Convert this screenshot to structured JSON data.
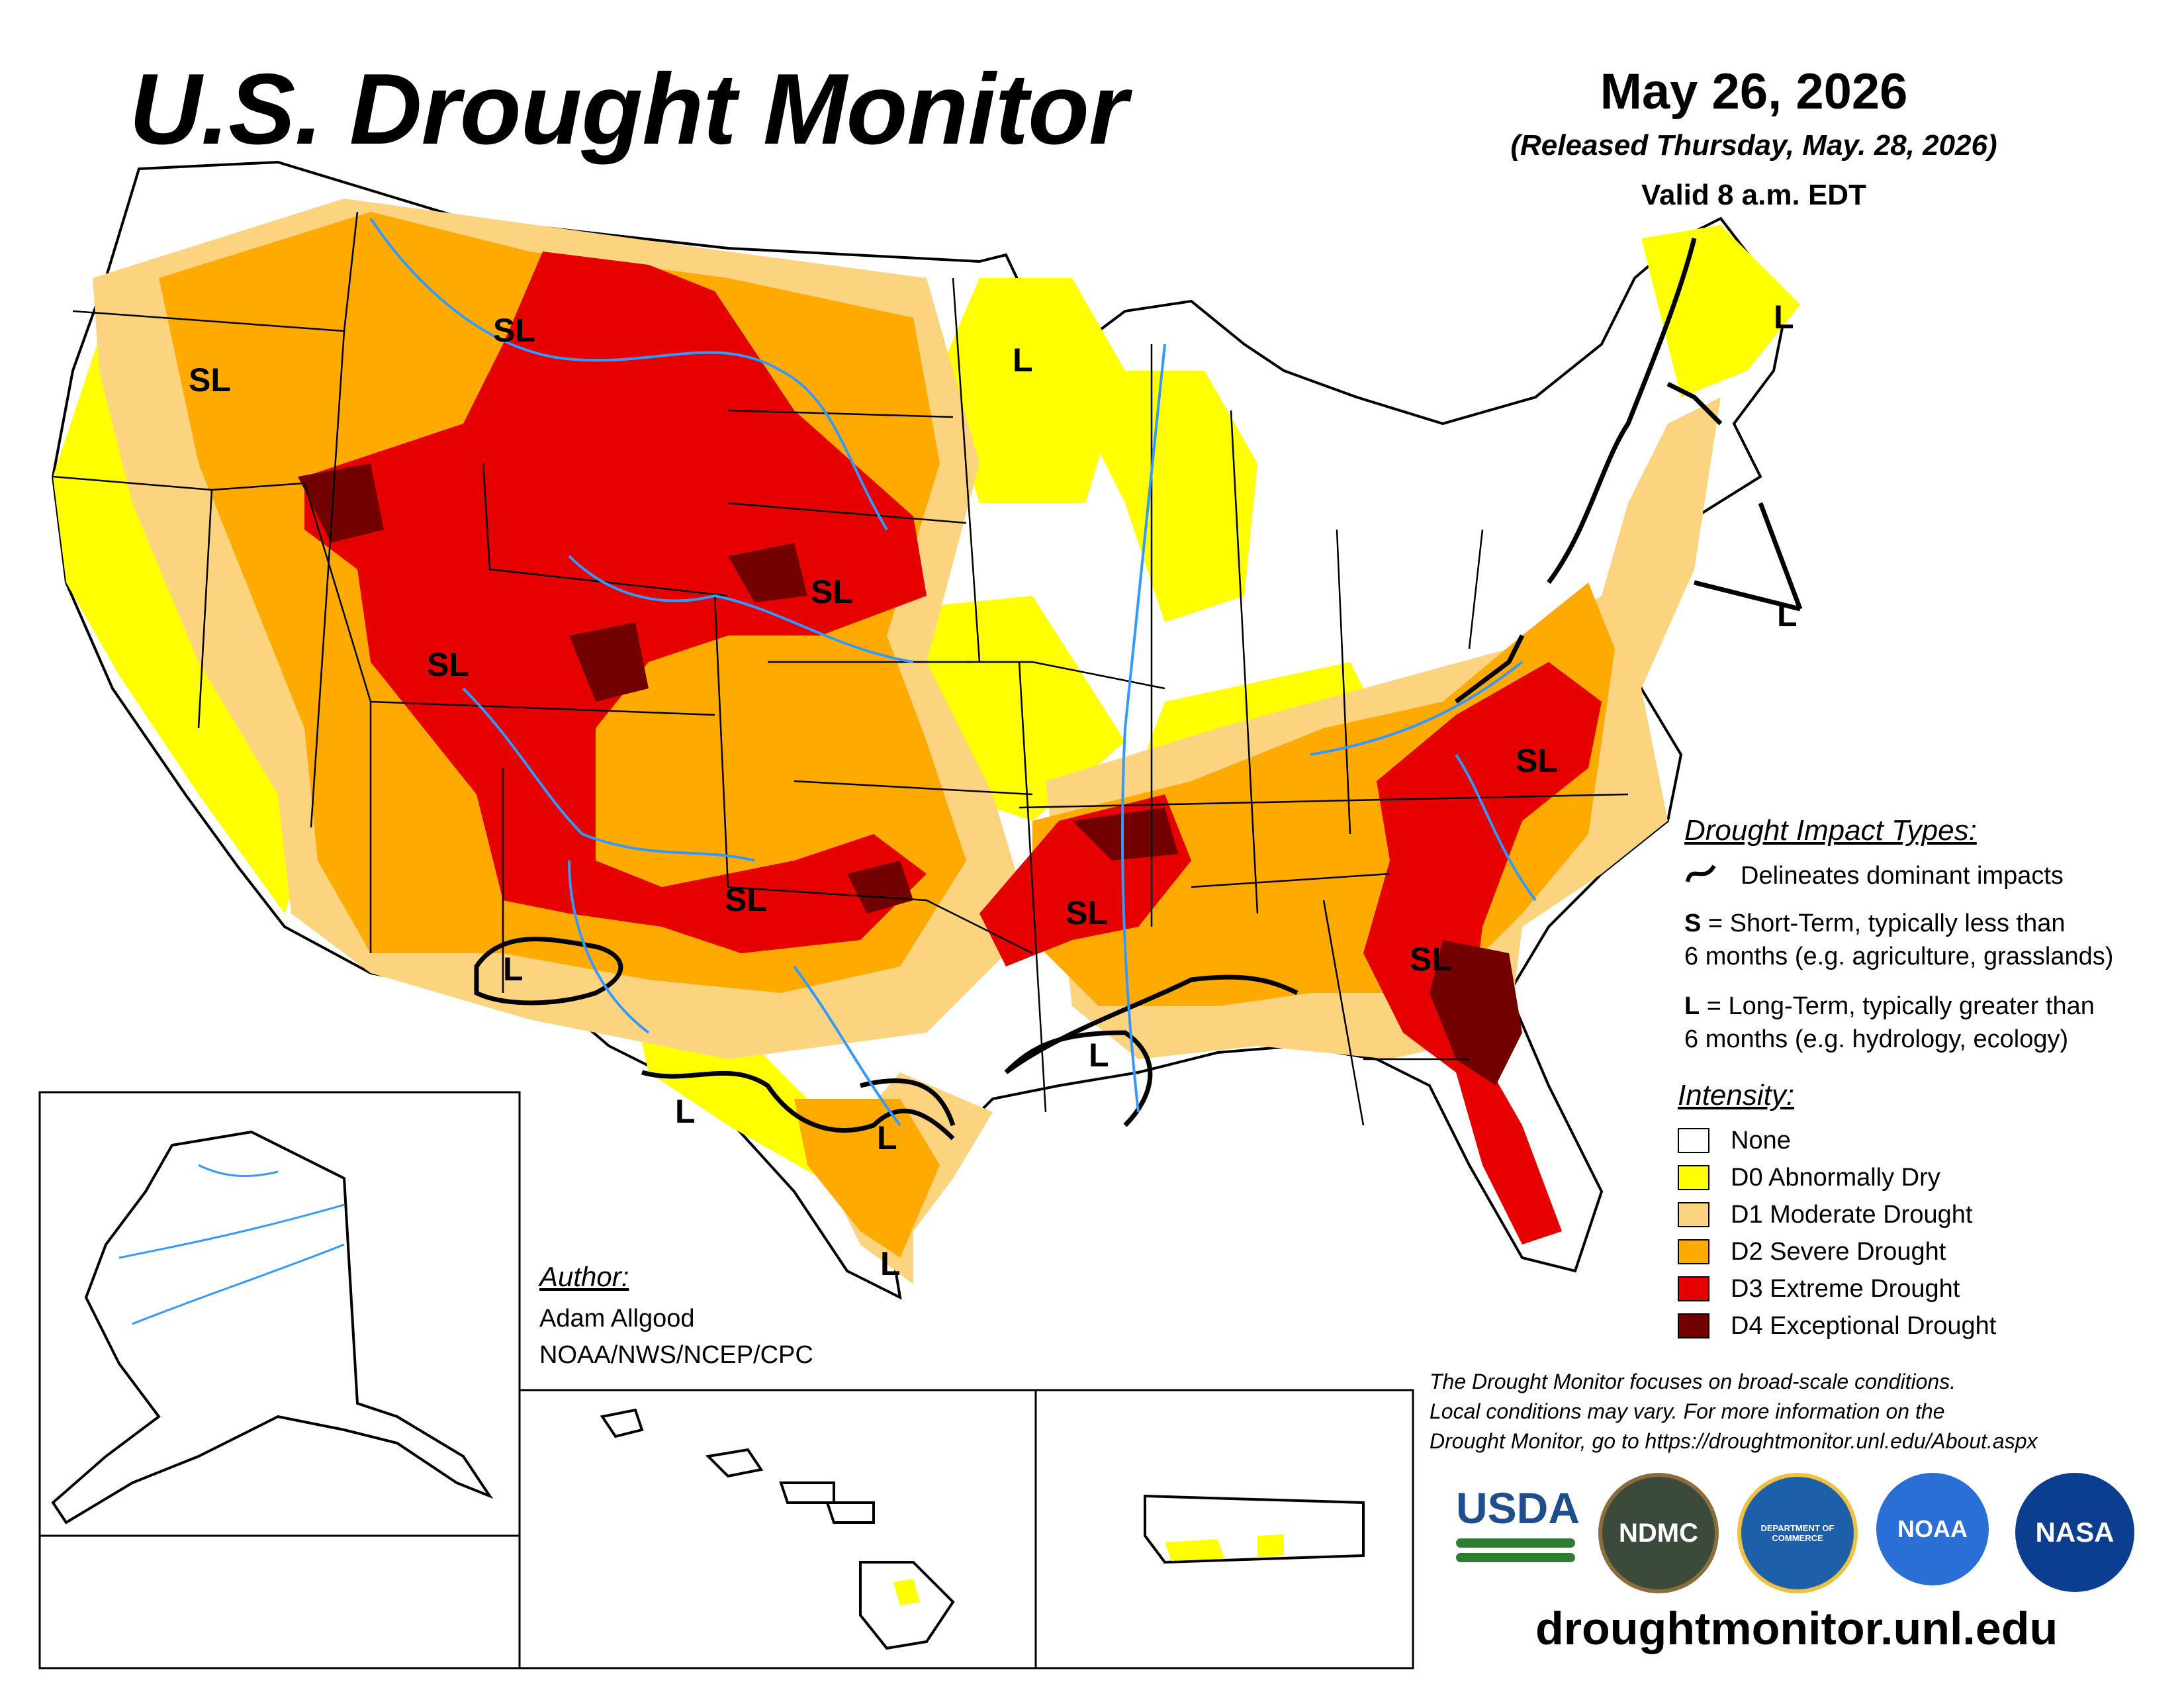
{
  "title": "U.S. Drought Monitor",
  "date": "May 26, 2026",
  "released": "(Released Thursday, May. 28, 2026)",
  "valid": "Valid 8 a.m. EDT",
  "impact": {
    "heading": "Drought Impact Types:",
    "delineates": "Delineates dominant impacts",
    "s_key": "S",
    "s_text_1": " = Short-Term, typically less than",
    "s_text_2": "6 months (e.g. agriculture, grasslands)",
    "l_key": "L",
    "l_text_1": " = Long-Term, typically greater than",
    "l_text_2": "6 months (e.g. hydrology, ecology)"
  },
  "intensity": {
    "heading": "Intensity:",
    "items": [
      {
        "label": "None",
        "color": "#ffffff"
      },
      {
        "label": "D0 Abnormally Dry",
        "color": "#ffff00"
      },
      {
        "label": "D1 Moderate Drought",
        "color": "#fcd37f"
      },
      {
        "label": "D2 Severe Drought",
        "color": "#ffaa00"
      },
      {
        "label": "D3 Extreme Drought",
        "color": "#e60000"
      },
      {
        "label": "D4 Exceptional Drought",
        "color": "#730000"
      }
    ]
  },
  "author": {
    "heading": "Author:",
    "name": "Adam Allgood",
    "org": "NOAA/NWS/NCEP/CPC"
  },
  "disclaimer": {
    "line1": "The Drought Monitor focuses on broad-scale conditions.",
    "line2": "Local conditions may vary. For more information on the",
    "line3": "Drought Monitor, go to https://droughtmonitor.unl.edu/About.aspx"
  },
  "website": "droughtmonitor.unl.edu",
  "logos": {
    "usda": "USDA",
    "ndmc": "NDMC",
    "noaa": "NOAA",
    "nasa": "NASA",
    "doc": "DEPARTMENT OF COMMERCE"
  },
  "map_labels": {
    "sl_oregon": "SL",
    "sl_montana": "SL",
    "sl_utah": "SL",
    "sl_southdakota": "SL",
    "sl_oklahoma": "SL",
    "sl_arkansas": "SL",
    "sl_carolina": "SL",
    "sl_georgia": "SL",
    "l_minnesota": "L",
    "l_maine": "L",
    "l_northeast": "L",
    "l_newmexico": "L",
    "l_westtexas": "L",
    "l_centraltexas": "L",
    "l_southtexas": "L",
    "l_louisiana": "L"
  }
}
